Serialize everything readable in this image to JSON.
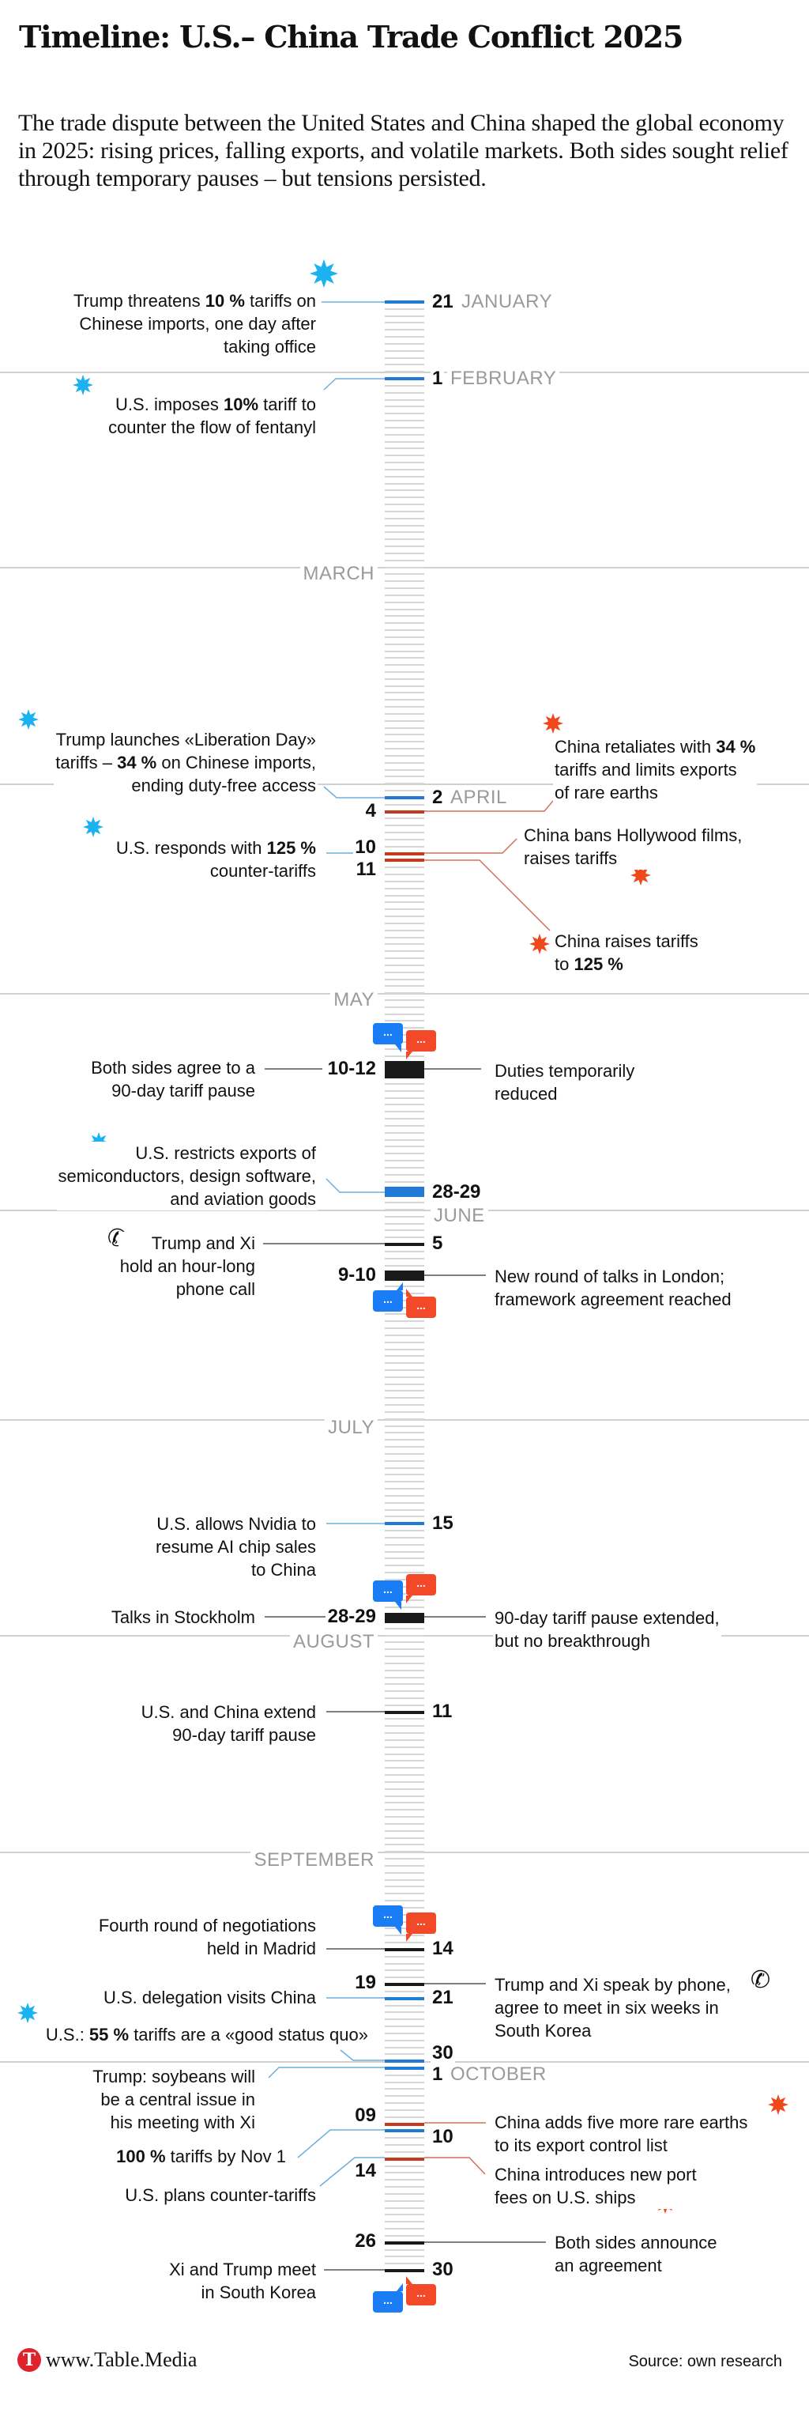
{
  "header": {
    "title": "Timeline: U.S.– China Trade Conflict 2025",
    "intro": "The trade dispute between the United States and China shaped the global economy in 2025: rising prices, falling exports, and volatile markets. Both sides sought relief through temporary pauses – but tensions persisted."
  },
  "months": [
    "JANUARY",
    "FEBRUARY",
    "MARCH",
    "APRIL",
    "MAY",
    "JUNE",
    "JULY",
    "AUGUST",
    "SEPTEMBER",
    "OCTOBER"
  ],
  "colors": {
    "us_tick": "#1f7bd6",
    "china_tick": "#c43a1c",
    "both_tick": "#1a1a1a",
    "us_star": "#1ab2f0",
    "china_star": "#f0481a",
    "us_bubble": "#1a7df5",
    "china_bubble": "#f24a28"
  },
  "marks": [
    {
      "month": 1,
      "start": 21,
      "end": 21,
      "actor": "us"
    },
    {
      "month": 2,
      "start": 1,
      "end": 1,
      "actor": "us"
    },
    {
      "month": 4,
      "start": 2,
      "end": 2,
      "actor": "us"
    },
    {
      "month": 4,
      "start": 4,
      "end": 4,
      "actor": "china"
    },
    {
      "month": 4,
      "start": 10,
      "end": 10,
      "actor": "china"
    },
    {
      "month": 4,
      "start": 11,
      "end": 11,
      "actor": "china"
    },
    {
      "month": 5,
      "start": 10,
      "end": 12,
      "actor": "both"
    },
    {
      "month": 5,
      "start": 28,
      "end": 29,
      "actor": "us"
    },
    {
      "month": 6,
      "start": 5,
      "end": 5,
      "actor": "both"
    },
    {
      "month": 6,
      "start": 9,
      "end": 10,
      "actor": "both"
    },
    {
      "month": 7,
      "start": 15,
      "end": 15,
      "actor": "us"
    },
    {
      "month": 7,
      "start": 28,
      "end": 29,
      "actor": "both"
    },
    {
      "month": 8,
      "start": 11,
      "end": 11,
      "actor": "both"
    },
    {
      "month": 9,
      "start": 14,
      "end": 14,
      "actor": "both"
    },
    {
      "month": 9,
      "start": 19,
      "end": 19,
      "actor": "both"
    },
    {
      "month": 9,
      "start": 21,
      "end": 21,
      "actor": "us"
    },
    {
      "month": 9,
      "start": 30,
      "end": 30,
      "actor": "us"
    },
    {
      "month": 10,
      "start": 1,
      "end": 1,
      "actor": "us"
    },
    {
      "month": 10,
      "start": 9,
      "end": 9,
      "actor": "china"
    },
    {
      "month": 10,
      "start": 10,
      "end": 10,
      "actor": "us"
    },
    {
      "month": 10,
      "start": 14,
      "end": 14,
      "actor": "china"
    },
    {
      "month": 10,
      "start": 26,
      "end": 26,
      "actor": "both"
    },
    {
      "month": 10,
      "start": 30,
      "end": 30,
      "actor": "both"
    }
  ],
  "days": {
    "jan21": "21",
    "feb1": "1",
    "apr2": "2",
    "apr4": "4",
    "apr10": "10",
    "apr11": "11",
    "may10_12": "10-12",
    "may28_29": "28-29",
    "jun5": "5",
    "jun9_10": "9-10",
    "jul15": "15",
    "jul28_29": "28-29",
    "aug11": "11",
    "sep14": "14",
    "sep19": "19",
    "sep21": "21",
    "sep30": "30",
    "oct1": "1",
    "oct9": "09",
    "oct10": "10",
    "oct14": "14",
    "oct26": "26",
    "oct30": "30"
  },
  "bubble_text": "...",
  "events": {
    "jan": [
      "Trump threatens ",
      "10 %",
      " tariffs on",
      "Chinese imports, one day after",
      "taking office"
    ],
    "feb": [
      "U.S. imposes ",
      "10%",
      " tariff to",
      "counter the flow of fentanyl"
    ],
    "liberation": [
      "Trump launches «Liberation Day»",
      "tariffs – ",
      "34 %",
      " on Chinese imports,",
      "ending duty-free access"
    ],
    "us_responds": [
      "U.S. responds with ",
      "125 %",
      "counter-tariffs"
    ],
    "china_retaliates": [
      "China retaliates with ",
      "34 %",
      "tariffs and limits exports",
      "of rare earths"
    ],
    "hollywood": [
      "China bans Hollywood films,",
      "raises tariffs"
    ],
    "china_raises": [
      "China raises tariffs",
      "to ",
      "125 %"
    ],
    "pause_agree": [
      "Both sides agree to a",
      "90-day tariff pause"
    ],
    "duties": [
      "Duties temporarily",
      "reduced"
    ],
    "restricts": [
      "U.S. restricts exports of",
      "semiconductors, design software,",
      "and aviation goods"
    ],
    "phone_call": [
      "Trump and Xi",
      "hold an hour-long",
      "phone call"
    ],
    "london": [
      "New round of talks in London;",
      "framework agreement reached"
    ],
    "nvidia": [
      "U.S. allows Nvidia to",
      "resume AI chip sales",
      "to China"
    ],
    "stockholm": [
      "Talks in Stockholm"
    ],
    "extended": [
      "90-day tariff pause extended,",
      "but no breakthrough"
    ],
    "aug_extend": [
      "U.S. and China extend",
      "90-day tariff pause"
    ],
    "madrid": [
      "Fourth round of negotiations",
      "held in Madrid"
    ],
    "phone_sep": [
      "Trump and Xi speak by phone,",
      "agree to meet in six weeks in",
      "South Korea"
    ],
    "delegation": [
      "U.S. delegation visits China"
    ],
    "status_quo": [
      "U.S.: ",
      "55 %",
      " tariffs are a «good status quo»"
    ],
    "soybeans": [
      "Trump: soybeans will",
      "be a central issue in",
      "his meeting with Xi"
    ],
    "rare_earths": [
      "China adds five more rare earths",
      "to its export control list"
    ],
    "nov1": [
      "100 %",
      " tariffs by Nov 1"
    ],
    "counter": [
      "U.S. plans counter-tariffs"
    ],
    "port_fees": [
      "China introduces new port",
      "fees on U.S. ships"
    ],
    "agreement": [
      "Both sides announce",
      "an agreement"
    ],
    "meet": [
      "Xi and Trump meet",
      "in South Korea"
    ]
  },
  "footer": {
    "logo": "T",
    "site": "www.Table.Media",
    "source": "Source: own research"
  }
}
